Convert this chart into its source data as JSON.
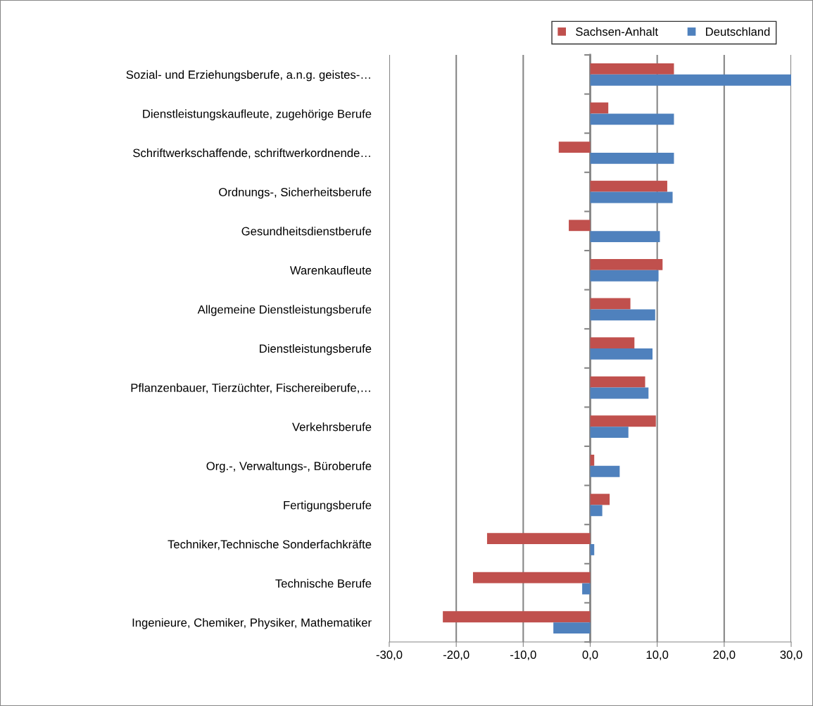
{
  "chart_data": {
    "type": "bar",
    "orientation": "horizontal",
    "categories": [
      "Sozial- und Erziehungsberufe, a.n.g. geistes-…",
      "Dienstleistungskaufleute, zugehörige Berufe",
      "Schriftwerkschaffende, schriftwerkordnende…",
      "Ordnungs-, Sicherheitsberufe",
      "Gesundheitsdienstberufe",
      "Warenkaufleute",
      "Allgemeine Dienstleistungsberufe",
      "Dienstleistungsberufe",
      "Pflanzenbauer, Tierzüchter, Fischereiberufe,…",
      "Verkehrsberufe",
      "Org.-, Verwaltungs-, Büroberufe",
      "Fertigungsberufe",
      "Techniker,Technische Sonderfachkräfte",
      "Technische Berufe",
      "Ingenieure, Chemiker, Physiker, Mathematiker"
    ],
    "series": [
      {
        "name": "Sachsen-Anhalt",
        "color": "#c0504d",
        "values": [
          12.5,
          2.7,
          -4.7,
          11.5,
          -3.2,
          10.8,
          6.0,
          6.6,
          8.2,
          9.8,
          0.6,
          2.9,
          -15.4,
          -17.5,
          -22.0
        ]
      },
      {
        "name": "Deutschland",
        "color": "#4f81bd",
        "values": [
          30.0,
          12.5,
          12.5,
          12.3,
          10.4,
          10.2,
          9.7,
          9.3,
          8.7,
          5.7,
          4.4,
          1.8,
          0.6,
          -1.2,
          -5.5
        ]
      }
    ],
    "xlim": [
      -30,
      30
    ],
    "xticks": [
      {
        "value": -30,
        "label": "-30,0"
      },
      {
        "value": -20,
        "label": "-20,0"
      },
      {
        "value": -10,
        "label": "-10,0"
      },
      {
        "value": 0,
        "label": "0,0"
      },
      {
        "value": 10,
        "label": "10,0"
      },
      {
        "value": 20,
        "label": "20,0"
      },
      {
        "value": 30,
        "label": "30,0"
      }
    ],
    "grid": "x",
    "legend": "top right"
  }
}
